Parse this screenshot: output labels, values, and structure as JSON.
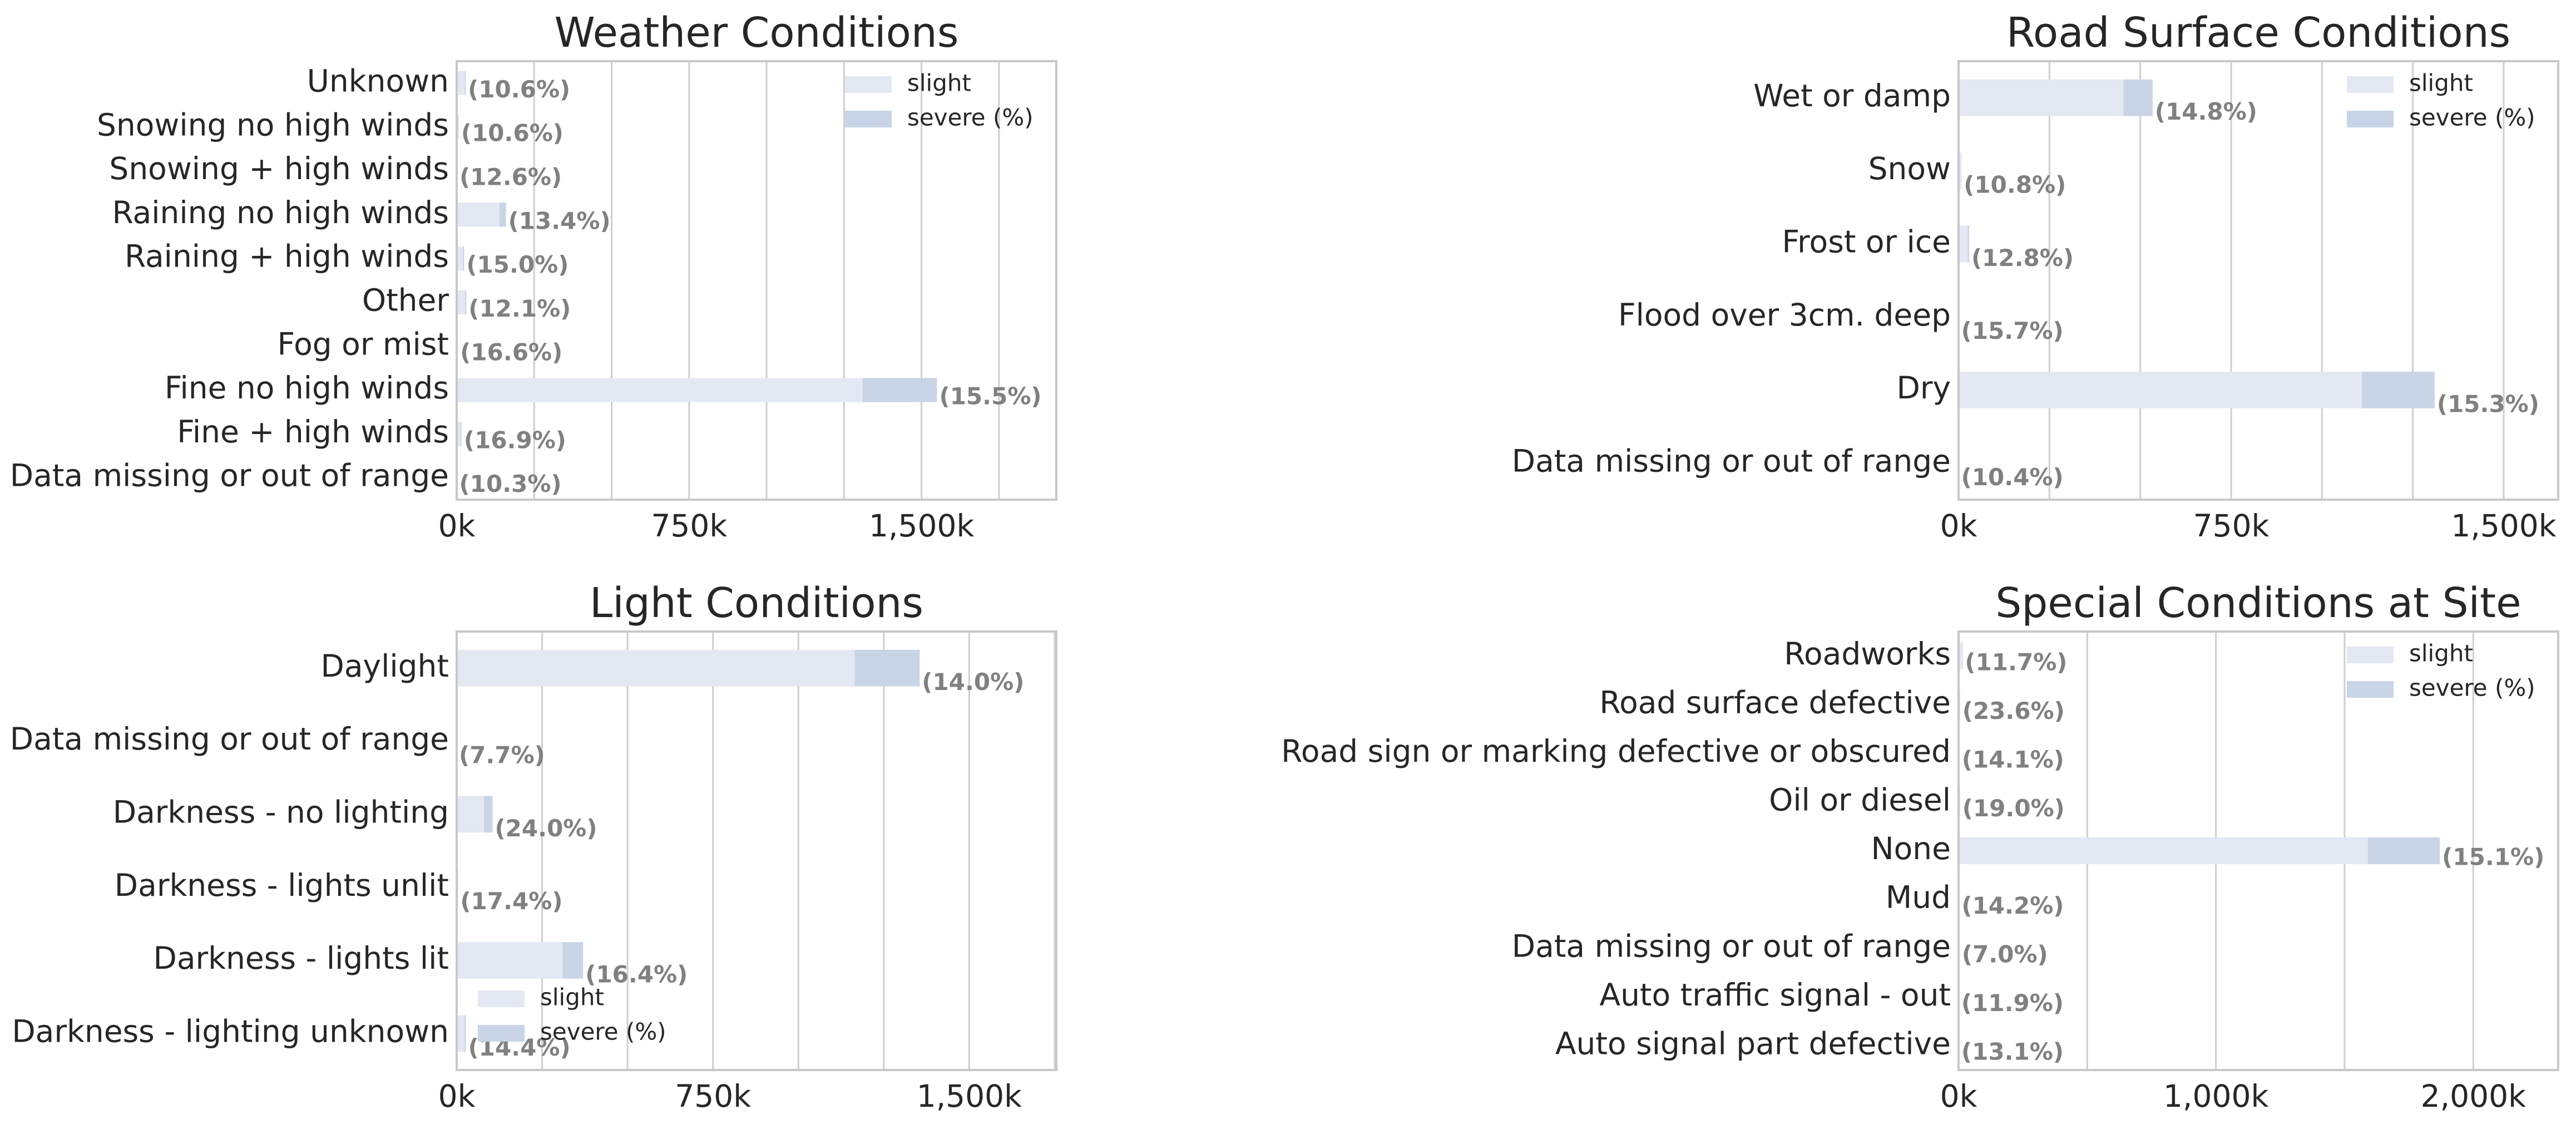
{
  "colors": {
    "slight": "#e4e8f3",
    "severe": "#c9d4e7",
    "grid": "#cfcfcf",
    "frame": "#c8c8c8",
    "text": "#262626",
    "pct": "#808080"
  },
  "chart_data": [
    {
      "type": "bar",
      "orientation": "horizontal",
      "stacked": true,
      "title": "Weather Conditions",
      "categories": [
        "Unknown",
        "Snowing no high winds",
        "Snowing + high winds",
        "Raining no high winds",
        "Raining + high winds",
        "Other",
        "Fog or mist",
        "Fine no high winds",
        "Fine + high winds",
        "Data missing or out of range"
      ],
      "series": [
        {
          "name": "slight",
          "values": [
            26,
            6,
            2,
            138,
            20,
            27,
            3,
            1310,
            13,
            1
          ]
        },
        {
          "name": "severe (%)",
          "values": [
            3,
            1,
            0,
            21,
            4,
            4,
            1,
            240,
            3,
            0
          ]
        }
      ],
      "percent_labels": [
        "(10.6%)",
        "(10.6%)",
        "(12.6%)",
        "(13.4%)",
        "(15.0%)",
        "(12.1%)",
        "(16.6%)",
        "(15.5%)",
        "(16.9%)",
        "(10.3%)"
      ],
      "xticks": [
        0,
        750000,
        1500000
      ],
      "xtick_labels": [
        "0k",
        "750k",
        "1,500k"
      ],
      "gridlines": [
        0,
        250000,
        500000,
        750000,
        1000000,
        1250000,
        1500000,
        1750000
      ],
      "xlim": [
        0,
        1935000
      ],
      "legend": [
        "slight",
        "severe (%)"
      ],
      "legend_position": "top-right"
    },
    {
      "type": "bar",
      "orientation": "horizontal",
      "stacked": true,
      "title": "Road Surface Conditions",
      "categories": [
        "Wet or damp",
        "Snow",
        "Frost or ice",
        "Flood over 3cm. deep",
        "Dry",
        "Data missing or out of range"
      ],
      "series": [
        {
          "name": "slight",
          "values": [
            454,
            7,
            25,
            1,
            1110,
            1
          ]
        },
        {
          "name": "severe (%)",
          "values": [
            80,
            1,
            4,
            0,
            200,
            0
          ]
        }
      ],
      "percent_labels": [
        "(14.8%)",
        "(10.8%)",
        "(12.8%)",
        "(15.7%)",
        "(15.3%)",
        "(10.4%)"
      ],
      "xticks": [
        0,
        750000,
        1500000
      ],
      "xtick_labels": [
        "0k",
        "750k",
        "1,500k"
      ],
      "gridlines": [
        0,
        250000,
        500000,
        750000,
        1000000,
        1250000,
        1500000
      ],
      "xlim": [
        0,
        1650000
      ],
      "legend": [
        "slight",
        "severe (%)"
      ],
      "legend_position": "top-right"
    },
    {
      "type": "bar",
      "orientation": "horizontal",
      "stacked": true,
      "title": "Light Conditions",
      "categories": [
        "Daylight",
        "Data missing or out of range",
        "Darkness - no lighting",
        "Darkness - lights unlit",
        "Darkness - lights lit",
        "Darkness - lighting unknown"
      ],
      "series": [
        {
          "name": "slight",
          "values": [
            1165,
            0,
            80,
            3,
            310,
            23
          ]
        },
        {
          "name": "severe (%)",
          "values": [
            190,
            0,
            25,
            1,
            60,
            4
          ]
        }
      ],
      "percent_labels": [
        "(14.0%)",
        "(7.7%)",
        "(24.0%)",
        "(17.4%)",
        "(16.4%)",
        "(14.4%)"
      ],
      "xticks": [
        0,
        750000,
        1500000
      ],
      "xtick_labels": [
        "0k",
        "750k",
        "1,500k"
      ],
      "gridlines": [
        0,
        250000,
        500000,
        750000,
        1000000,
        1250000,
        1500000,
        1750000
      ],
      "xlim": [
        0,
        1755000
      ],
      "legend": [
        "slight",
        "severe (%)"
      ],
      "legend_position": "lower-left"
    },
    {
      "type": "bar",
      "orientation": "horizontal",
      "stacked": true,
      "title": "Special Conditions at Site",
      "categories": [
        "Roadworks",
        "Road surface defective",
        "Road sign or marking defective or obscured",
        "Oil or diesel",
        "None",
        "Mud",
        "Data missing or out of range",
        "Auto traffic signal - out",
        "Auto signal part defective"
      ],
      "series": [
        {
          "name": "slight",
          "values": [
            14,
            5,
            3,
            5,
            1590,
            3,
            4,
            2,
            2
          ]
        },
        {
          "name": "severe (%)",
          "values": [
            2,
            1,
            1,
            1,
            280,
            0,
            0,
            0,
            0
          ]
        }
      ],
      "percent_labels": [
        "(11.7%)",
        "(23.6%)",
        "(14.1%)",
        "(19.0%)",
        "(15.1%)",
        "(14.2%)",
        "(7.0%)",
        "(11.9%)",
        "(13.1%)"
      ],
      "xticks": [
        0,
        1000000,
        2000000
      ],
      "xtick_labels": [
        "0k",
        "1,000k",
        "2,000k"
      ],
      "gridlines": [
        0,
        500000,
        1000000,
        1500000,
        2000000
      ],
      "xlim": [
        0,
        2330000
      ],
      "legend": [
        "slight",
        "severe (%)"
      ],
      "legend_position": "top-right"
    }
  ]
}
